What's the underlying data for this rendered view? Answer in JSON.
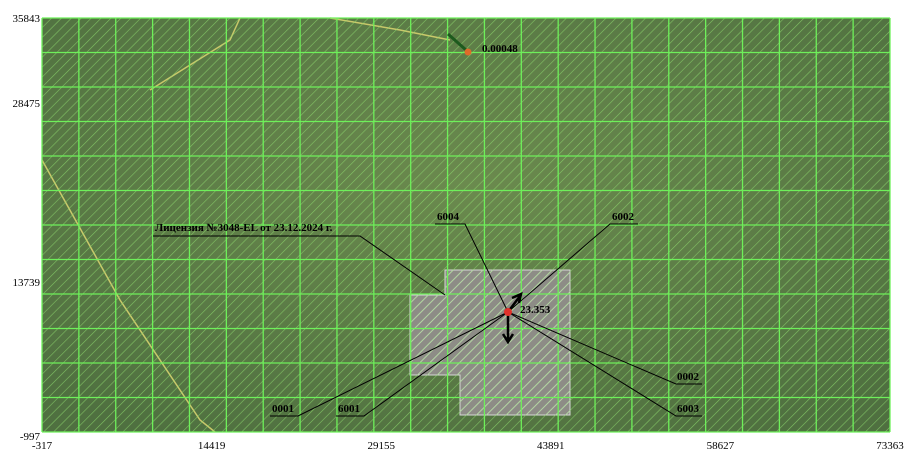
{
  "axes": {
    "x_labels": [
      "-317",
      "14419",
      "29155",
      "43891",
      "58627",
      "73363"
    ],
    "y_labels": [
      "35843",
      "28475",
      "13739",
      "-997"
    ]
  },
  "labels": {
    "license": "Лицензия №3048-EL от 23.12.2024 г.",
    "p6004": "6004",
    "p6002": "6002",
    "p0002": "0002",
    "p6003": "6003",
    "p0001": "0001",
    "p6001": "6001",
    "top_value": "0.00048",
    "center_value": "23.353"
  }
}
